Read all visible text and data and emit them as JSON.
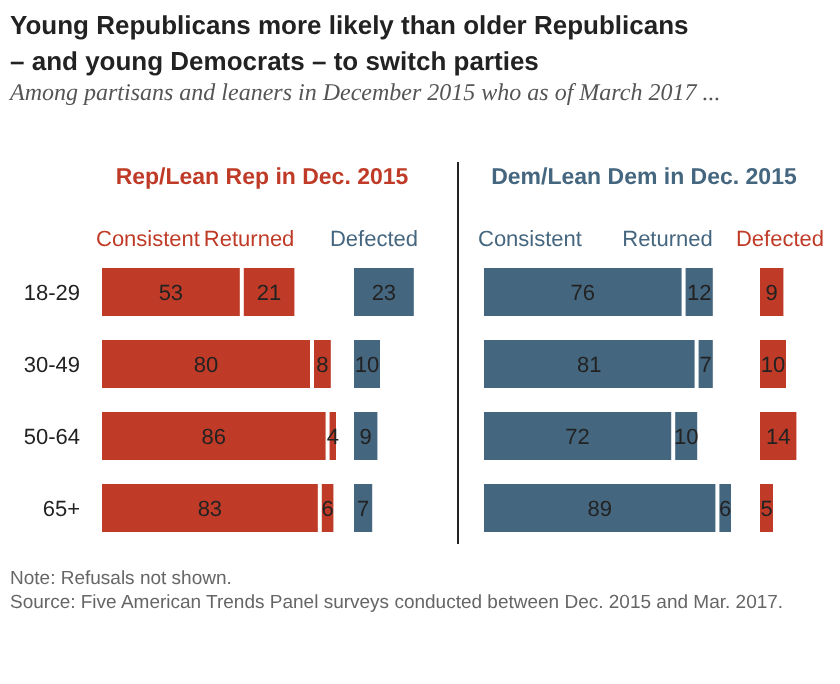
{
  "chart_data": [
    {
      "type": "other",
      "title": "Young Republicans more likely than older Republicans – and young Democrats – to switch parties",
      "subtitle": "Among partisans and leaners in December 2015 who as of March 2017 ...",
      "annotations": [
        "Note: Refusals not shown.",
        "Source: Five American Trends Panel surveys conducted between Dec. 2015 and Mar. 2017."
      ]
    },
    {
      "type": "bar",
      "orientation": "horizontal",
      "stacked": true,
      "title": "Rep/Lean Rep in Dec. 2015",
      "categories": [
        "18-29",
        "30-49",
        "50-64",
        "65+"
      ],
      "data_labels": true,
      "legend": "top",
      "series": [
        {
          "name": "Consistent",
          "color": "#bf3b27",
          "values": [
            53,
            80,
            86,
            83
          ]
        },
        {
          "name": "Returned",
          "color": "#bf3b27",
          "values": [
            21,
            8,
            4,
            6
          ]
        }
      ]
    },
    {
      "type": "bar",
      "orientation": "horizontal",
      "stacked": true,
      "data_labels": true,
      "legend": "top",
      "series": [
        {
          "name": "Defected",
          "color": "#45667f",
          "values": [
            23,
            10,
            9,
            7
          ]
        }
      ]
    },
    {
      "type": "bar",
      "orientation": "horizontal",
      "stacked": true,
      "title": "Dem/Lean Dem in Dec. 2015",
      "data_labels": true,
      "legend": "top",
      "series": [
        {
          "name": "Consistent",
          "color": "#45667f",
          "values": [
            76,
            81,
            72,
            89
          ]
        },
        {
          "name": "Returned",
          "color": "#45667f",
          "values": [
            12,
            7,
            10,
            6
          ]
        }
      ]
    },
    {
      "type": "bar",
      "orientation": "horizontal",
      "stacked": true,
      "data_labels": true,
      "legend": "top",
      "series": [
        {
          "name": "Defected",
          "color": "#bf3b27",
          "values": [
            9,
            10,
            14,
            5
          ]
        }
      ]
    }
  ]
}
